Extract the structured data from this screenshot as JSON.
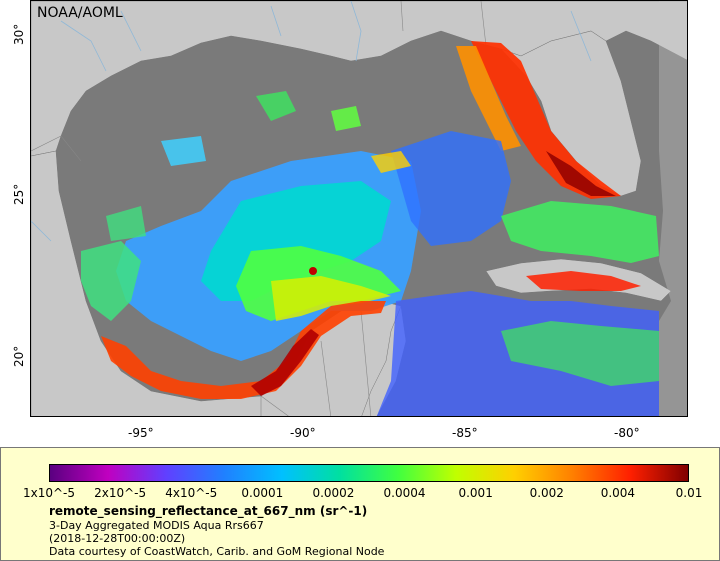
{
  "map": {
    "credit": "NOAA/AOML",
    "lon_ticks": [
      "-95°",
      "-90°",
      "-85°",
      "-80°"
    ],
    "lat_ticks": [
      "30°",
      "25°",
      "20°"
    ],
    "colors": {
      "land": "#c8c8c8",
      "nodata": "#7a7a7a",
      "rivers": "#8fb8d8"
    }
  },
  "legend": {
    "colorbar_ticks": [
      "1x10^-5",
      "2x10^-5",
      "4x10^-5",
      "0.0001",
      "0.0002",
      "0.0004",
      "0.001",
      "0.002",
      "0.004",
      "0.01"
    ],
    "colormap": [
      "#5a0080",
      "#c000c0",
      "#6040ff",
      "#2080ff",
      "#00c0ff",
      "#00e0a0",
      "#40ff40",
      "#c0ff00",
      "#ffd000",
      "#ff8000",
      "#ff2000",
      "#800000"
    ],
    "variable": "remote_sensing_reflectance_at_667_nm (sr^-1)",
    "product": "3-Day Aggregated MODIS Aqua Rrs667",
    "time": "(2018-12-28T00:00:00Z)",
    "source": "Data courtesy of CoastWatch, Carib. and GoM Regional Node"
  }
}
